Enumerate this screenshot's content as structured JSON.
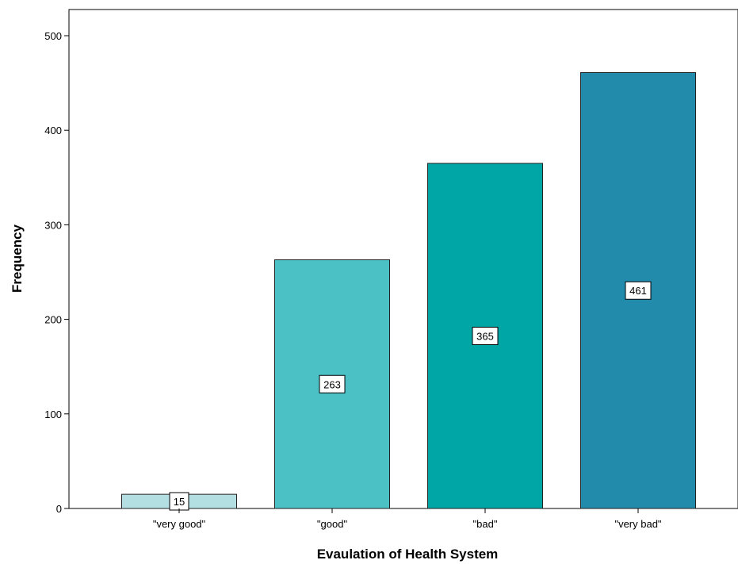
{
  "chart_data": {
    "type": "bar",
    "title": "",
    "xlabel": "Evaulation of Health System",
    "ylabel": "Frequency",
    "categories": [
      "\"very good\"",
      "\"good\"",
      "\"bad\"",
      "\"very bad\""
    ],
    "values": [
      15,
      263,
      365,
      461
    ],
    "data_labels": [
      "15",
      "263",
      "365",
      "461"
    ],
    "colors": [
      "#b3dfe3",
      "#4bc1c6",
      "#00a5a5",
      "#228bab"
    ],
    "ylim": [
      0,
      500
    ],
    "yticks": [
      0,
      100,
      200,
      300,
      400,
      500
    ],
    "grid": false,
    "legend": "none"
  }
}
